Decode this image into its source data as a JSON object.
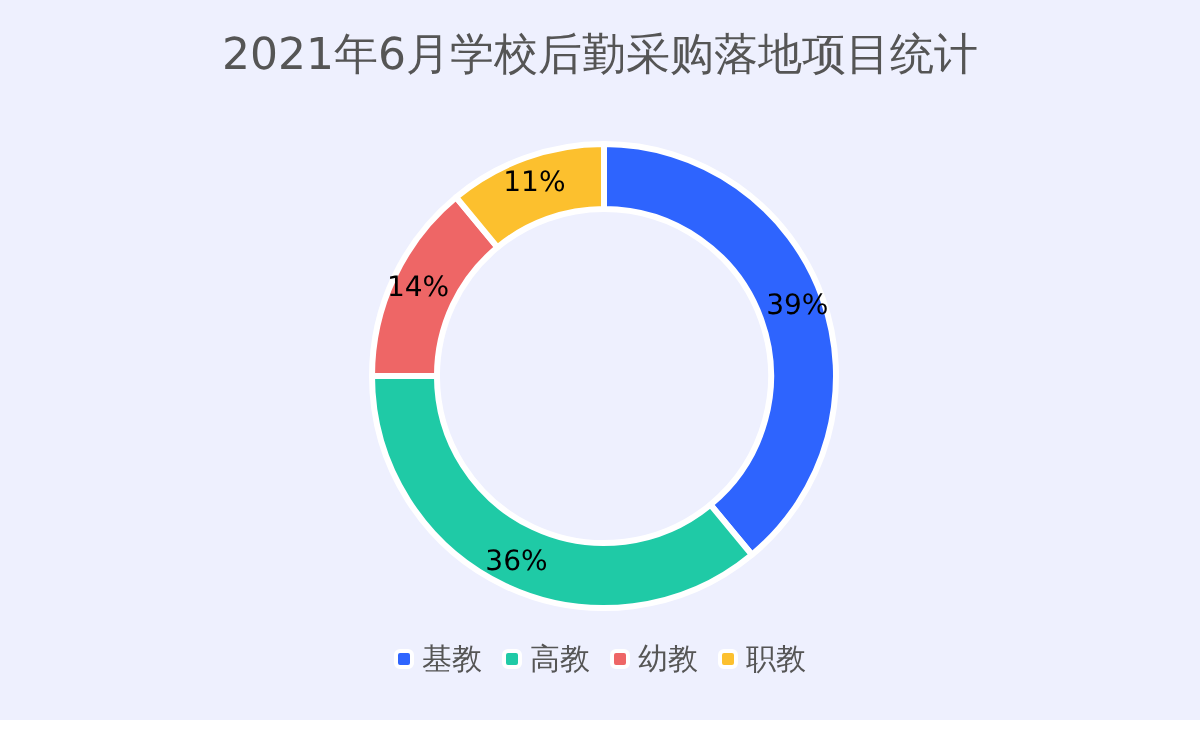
{
  "chart_data": {
    "type": "donut",
    "title": "2021年6月学校后勤采购落地项目统计",
    "categories": [
      "基教",
      "高教",
      "幼教",
      "职教"
    ],
    "values": [
      39,
      36,
      14,
      11
    ],
    "colors": [
      "#2e64fe",
      "#1fcaa6",
      "#ee6666",
      "#fcc02e"
    ],
    "value_labels": [
      "39%",
      "36%",
      "14%",
      "11%"
    ],
    "legend": "bottom"
  }
}
